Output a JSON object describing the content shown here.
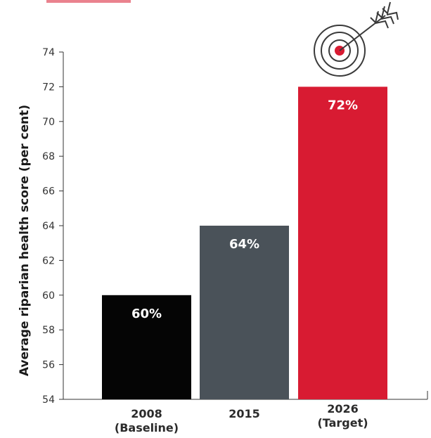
{
  "chart_data": {
    "type": "bar",
    "title": "",
    "xlabel": "",
    "ylabel": "Average riparian health score (per cent)",
    "ylim": [
      54,
      74
    ],
    "yticks": [
      54,
      56,
      58,
      60,
      62,
      64,
      66,
      68,
      70,
      72,
      74
    ],
    "grid": false,
    "categories": [
      {
        "year": "2008",
        "note": "(Baseline)"
      },
      {
        "year": "2015",
        "note": ""
      },
      {
        "year": "2026",
        "note": "(Target)"
      }
    ],
    "values": [
      60,
      64,
      72
    ],
    "data_labels": [
      "60%",
      "64%",
      "72%"
    ],
    "colors": [
      "#050505",
      "#4a5259",
      "#d81b32"
    ],
    "target_icon": "dartboard-target-icon",
    "header_accent_color": "#d81b32"
  }
}
